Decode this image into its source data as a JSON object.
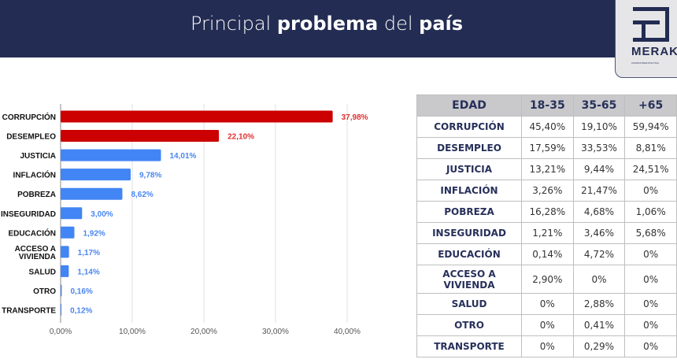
{
  "header": {
    "title_pre": "Principal ",
    "title_bold1": "problema",
    "title_mid": " del ",
    "title_bold2": "país"
  },
  "logo": {
    "name": "MERAKI",
    "subtitle": "CONSULTORA POLITICA"
  },
  "chart_data": {
    "type": "bar",
    "orientation": "horizontal",
    "categories": [
      "CORRUPCIÓN",
      "DESEMPLEO",
      "JUSTICIA",
      "INFLACIÓN",
      "POBREZA",
      "INSEGURIDAD",
      "EDUCACIÓN",
      "ACCESO A VIVIENDA",
      "SALUD",
      "OTRO",
      "TRANSPORTE"
    ],
    "values": [
      37.98,
      22.1,
      14.01,
      9.78,
      8.62,
      3.0,
      1.92,
      1.17,
      1.14,
      0.16,
      0.12
    ],
    "labels": [
      "37,98%",
      "22,10%",
      "14,01%",
      "9,78%",
      "8,62%",
      "3,00%",
      "1,92%",
      "1,17%",
      "1,14%",
      "0,16%",
      "0,12%"
    ],
    "highlight_count": 2,
    "colors": {
      "highlight": "#cc0000",
      "highlight_label": "#e0312f",
      "normal": "#4285f4",
      "normal_label": "#4a86f0"
    },
    "xlim": [
      0,
      40
    ],
    "xticks": [
      "0,00%",
      "10,00%",
      "20,00%",
      "30,00%",
      "40,00%"
    ],
    "grid": true
  },
  "table": {
    "headers": [
      "EDAD",
      "18-35",
      "35-65",
      "+65"
    ],
    "rows": [
      [
        "CORRUPCIÓN",
        "45,40%",
        "19,10%",
        "59,94%"
      ],
      [
        "DESEMPLEO",
        "17,59%",
        "33,53%",
        "8,81%"
      ],
      [
        "JUSTICIA",
        "13,21%",
        "9,44%",
        "24,51%"
      ],
      [
        "INFLACIÓN",
        "3,26%",
        "21,47%",
        "0%"
      ],
      [
        "POBREZA",
        "16,28%",
        "4,68%",
        "1,06%"
      ],
      [
        "INSEGURIDAD",
        "1,21%",
        "3,46%",
        "5,68%"
      ],
      [
        "EDUCACIÓN",
        "0,14%",
        "4,72%",
        "0%"
      ],
      [
        "ACCESO A VIVIENDA",
        "2,90%",
        "0%",
        "0%"
      ],
      [
        "SALUD",
        "0%",
        "2,88%",
        "0%"
      ],
      [
        "OTRO",
        "0%",
        "0,41%",
        "0%"
      ],
      [
        "TRANSPORTE",
        "0%",
        "0,29%",
        "0%"
      ]
    ]
  }
}
